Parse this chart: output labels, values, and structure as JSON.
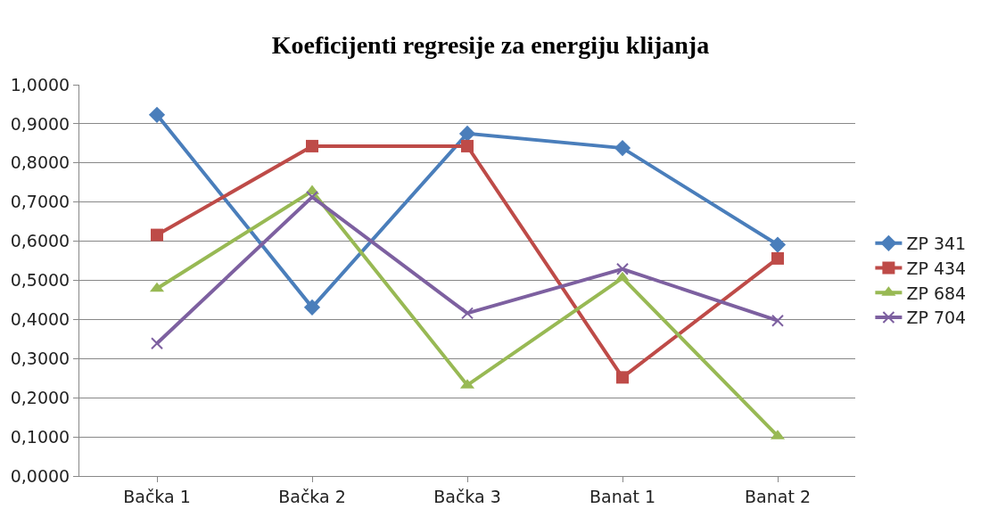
{
  "chart_data": {
    "type": "line",
    "title": "Koeficijenti regresije za energiju klijanja",
    "categories": [
      "Bačka 1",
      "Bačka 2",
      "Bačka 3",
      "Banat 1",
      "Banat 2"
    ],
    "series": [
      {
        "name": "ZP 341",
        "color": "#4a7ebb",
        "marker": "diamond",
        "values": [
          0.923,
          0.431,
          0.875,
          0.838,
          0.591
        ]
      },
      {
        "name": "ZP 434",
        "color": "#be4b48",
        "marker": "square",
        "values": [
          0.616,
          0.843,
          0.843,
          0.252,
          0.556
        ]
      },
      {
        "name": "ZP 684",
        "color": "#98b954",
        "marker": "triangle",
        "values": [
          0.479,
          0.728,
          0.232,
          0.506,
          0.102
        ]
      },
      {
        "name": "ZP 704",
        "color": "#7d60a0",
        "marker": "cross",
        "values": [
          0.339,
          0.713,
          0.416,
          0.529,
          0.397
        ]
      }
    ],
    "ylim": [
      0,
      1
    ],
    "yticks": [
      {
        "value": 0,
        "label": "0,0000"
      },
      {
        "value": 0.1,
        "label": "0,1000"
      },
      {
        "value": 0.2,
        "label": "0,2000"
      },
      {
        "value": 0.3,
        "label": "0,3000"
      },
      {
        "value": 0.4,
        "label": "0,4000"
      },
      {
        "value": 0.5,
        "label": "0,5000"
      },
      {
        "value": 0.6,
        "label": "0,6000"
      },
      {
        "value": 0.7,
        "label": "0,7000"
      },
      {
        "value": 0.8,
        "label": "0,8000"
      },
      {
        "value": 0.9,
        "label": "0,9000"
      },
      {
        "value": 1,
        "label": "1,0000"
      }
    ],
    "grid": "y",
    "legend": "right",
    "line_style": "solid"
  }
}
